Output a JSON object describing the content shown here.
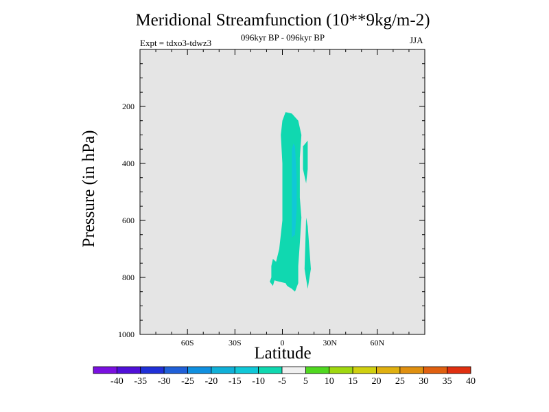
{
  "chart_data": {
    "type": "contour",
    "title": "Meridional Streamfunction (10**9kg/m-2)",
    "subtitle": "096kyr BP - 096kyr BP",
    "experiment": "Expt = tdxo3-tdwz3",
    "season": "JJA",
    "xlabel": "Latitude",
    "ylabel": "Pressure (in hPa)",
    "xlim": [
      -90,
      90
    ],
    "ylim": [
      1000,
      0
    ],
    "x_ticks": [
      {
        "value": -60,
        "label": "60S"
      },
      {
        "value": -30,
        "label": "30S"
      },
      {
        "value": 0,
        "label": "0"
      },
      {
        "value": 30,
        "label": "30N"
      },
      {
        "value": 60,
        "label": "60N"
      }
    ],
    "y_ticks": [
      {
        "value": 200,
        "label": "200"
      },
      {
        "value": 400,
        "label": "400"
      },
      {
        "value": 600,
        "label": "600"
      },
      {
        "value": 800,
        "label": "800"
      },
      {
        "value": 1000,
        "label": "1000"
      }
    ],
    "background_color": "#e5e5e5",
    "contour_regions": [
      {
        "level": -10,
        "color": "#10d8b0",
        "points": [
          [
            2,
            220
          ],
          [
            6,
            225
          ],
          [
            10,
            250
          ],
          [
            12,
            300
          ],
          [
            11,
            380
          ],
          [
            11,
            450
          ],
          [
            11,
            520
          ],
          [
            12,
            590
          ],
          [
            11,
            680
          ],
          [
            10,
            760
          ],
          [
            10,
            820
          ],
          [
            8,
            850
          ],
          [
            6,
            840
          ],
          [
            3,
            830
          ],
          [
            2,
            820
          ],
          [
            -2,
            815
          ],
          [
            -5,
            810
          ],
          [
            -6,
            830
          ],
          [
            -8,
            815
          ],
          [
            -7,
            800
          ],
          [
            -7,
            760
          ],
          [
            -6,
            735
          ],
          [
            -4,
            745
          ],
          [
            -2,
            700
          ],
          [
            0,
            600
          ],
          [
            0,
            500
          ],
          [
            0,
            400
          ],
          [
            -1,
            300
          ],
          [
            0,
            250
          ]
        ]
      },
      {
        "level": -10,
        "color": "#10d8b0",
        "points": [
          [
            13,
            340
          ],
          [
            16,
            320
          ],
          [
            16,
            420
          ],
          [
            15,
            470
          ],
          [
            13,
            420
          ]
        ]
      },
      {
        "level": -10,
        "color": "#10d8b0",
        "points": [
          [
            15,
            590
          ],
          [
            16,
            620
          ],
          [
            18,
            770
          ],
          [
            16,
            840
          ],
          [
            14,
            770
          ]
        ]
      },
      {
        "level": -15,
        "color": "#10c8d8",
        "points": [
          [
            7,
            330
          ],
          [
            8,
            340
          ],
          [
            9,
            450
          ],
          [
            9,
            560
          ],
          [
            8,
            650
          ],
          [
            6,
            660
          ],
          [
            6,
            550
          ],
          [
            6,
            440
          ],
          [
            6,
            350
          ]
        ]
      }
    ],
    "colorbar": {
      "labels": [
        "-40",
        "-35",
        "-30",
        "-25",
        "-20",
        "-15",
        "-10",
        "-5",
        "5",
        "10",
        "15",
        "20",
        "25",
        "30",
        "35",
        "40"
      ],
      "colors": [
        "#7a10e0",
        "#5010d8",
        "#2030d8",
        "#2060d8",
        "#1090e0",
        "#10b0d8",
        "#10c8d8",
        "#10d8b0",
        "#f0f0f0",
        "#50d820",
        "#a0d810",
        "#d0d010",
        "#e0b010",
        "#e09010",
        "#e06010",
        "#e03010"
      ]
    }
  }
}
